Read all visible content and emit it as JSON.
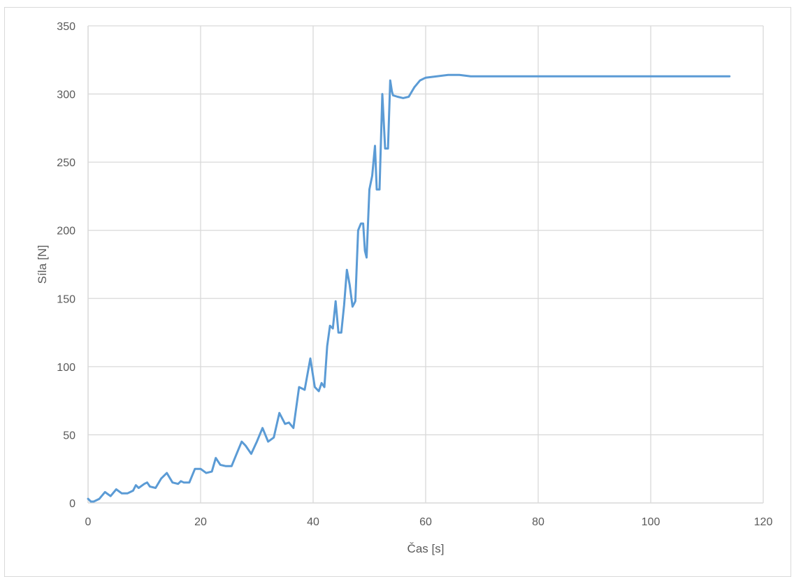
{
  "chart_data": {
    "type": "line",
    "title": "",
    "xlabel": "Čas [s]",
    "ylabel": "Síla [N]",
    "xlim": [
      0,
      120
    ],
    "ylim": [
      0,
      350
    ],
    "x_ticks": [
      0,
      20,
      40,
      60,
      80,
      100,
      120
    ],
    "y_ticks": [
      0,
      50,
      100,
      150,
      200,
      250,
      300,
      350
    ],
    "grid": true,
    "legend": "none",
    "colors": {
      "line": "#5b9bd5",
      "grid": "#d9d9d9",
      "text": "#595959"
    },
    "series": [
      {
        "x": [
          0,
          0.5,
          1,
          2,
          3,
          4,
          5,
          6,
          7,
          8,
          8.5,
          9,
          10,
          10.5,
          11,
          12,
          13,
          14,
          15,
          16,
          16.5,
          17,
          18,
          19,
          20,
          21,
          22,
          22.7,
          23.5,
          24.5,
          25.5,
          26.5,
          27.3,
          28,
          29,
          30,
          31,
          32,
          33,
          34,
          35,
          35.7,
          36.5,
          37.5,
          38.5,
          39.5,
          40.3,
          41,
          41.5,
          42,
          42.5,
          43,
          43.5,
          44,
          44.5,
          45,
          45.5,
          46,
          46.5,
          47,
          47.5,
          48,
          48.5,
          48.9,
          49.2,
          49.5,
          50,
          50.5,
          51,
          51.3,
          51.8,
          52.3,
          52.8,
          53.3,
          53.7,
          54,
          54.2,
          55,
          56,
          57,
          58,
          59,
          60,
          62,
          64,
          66,
          68,
          70,
          75,
          80,
          85,
          90,
          95,
          100,
          105,
          110,
          114
        ],
        "y": [
          3,
          1,
          1,
          3,
          8,
          5,
          10,
          7,
          7,
          9,
          13,
          11,
          14,
          15,
          12,
          11,
          18,
          22,
          15,
          14,
          16,
          15,
          15,
          25,
          25,
          22,
          23,
          33,
          28,
          27,
          27,
          37,
          45,
          42,
          36,
          45,
          55,
          45,
          48,
          66,
          58,
          59,
          55,
          85,
          83,
          106,
          85,
          82,
          88,
          85,
          115,
          130,
          128,
          148,
          125,
          125,
          145,
          171,
          160,
          144,
          148,
          200,
          205,
          205,
          185,
          180,
          230,
          240,
          262,
          230,
          230,
          300,
          260,
          260,
          310,
          302,
          299,
          298,
          297,
          298,
          305,
          310,
          312,
          313,
          314,
          314,
          313,
          313,
          313,
          313,
          313,
          313,
          313,
          313,
          313,
          313,
          313
        ]
      }
    ]
  }
}
